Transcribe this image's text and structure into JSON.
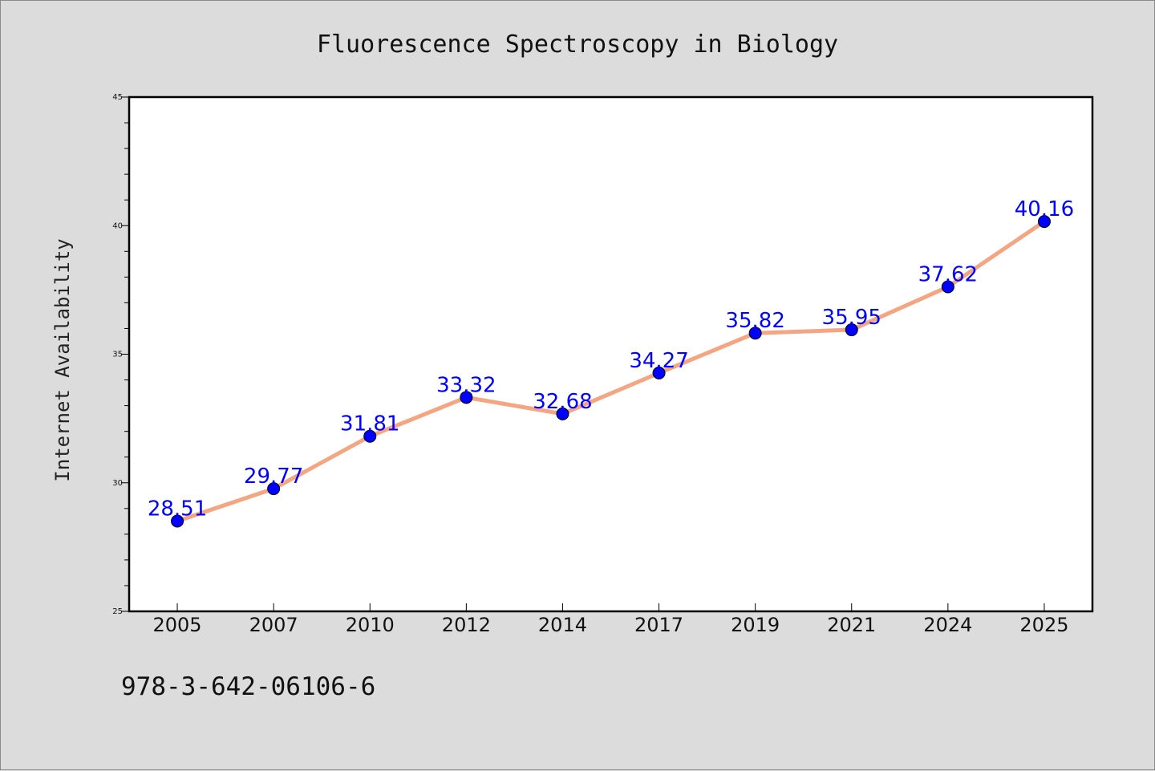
{
  "chart_data": {
    "type": "line",
    "title": "Fluorescence Spectroscopy in Biology",
    "xlabel": "",
    "ylabel": "Internet Availability",
    "categories": [
      "2005",
      "2007",
      "2010",
      "2012",
      "2014",
      "2017",
      "2019",
      "2021",
      "2024",
      "2025"
    ],
    "values": [
      28.51,
      29.77,
      31.81,
      33.32,
      32.68,
      34.27,
      35.82,
      35.95,
      37.62,
      40.16
    ],
    "data_labels": [
      "28.51",
      "29.77",
      "31.81",
      "33.32",
      "32.68",
      "34.27",
      "35.82",
      "35.95",
      "37.62",
      "40.16"
    ],
    "ylim": [
      25,
      45
    ],
    "y_ticks": [
      "25",
      "30",
      "35",
      "40",
      "45"
    ],
    "grid": false,
    "line_color": "#f4a582",
    "marker_color": "#0000ff",
    "label_color": "#0000ff"
  },
  "caption": "978-3-642-06106-6"
}
